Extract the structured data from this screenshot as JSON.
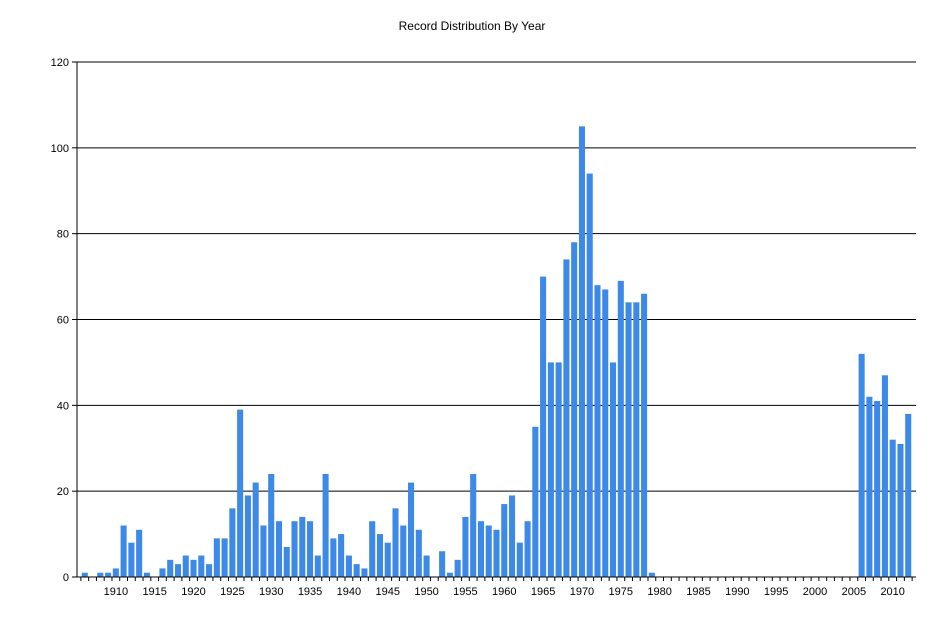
{
  "chart_data": {
    "type": "bar",
    "title": "Record Distribution By Year",
    "xlabel": "",
    "ylabel": "",
    "ylim": [
      0,
      120
    ],
    "yticks": [
      0,
      20,
      40,
      60,
      80,
      100,
      120
    ],
    "xlim": [
      1905,
      2013
    ],
    "xticks": [
      1910,
      1915,
      1920,
      1925,
      1930,
      1935,
      1940,
      1945,
      1950,
      1955,
      1960,
      1965,
      1970,
      1975,
      1980,
      1985,
      1990,
      1995,
      2000,
      2005,
      2010
    ],
    "grid": "horizontal",
    "legend": "none",
    "bar_color": "#3d89e8",
    "x": [
      1906,
      1908,
      1909,
      1910,
      1911,
      1912,
      1913,
      1914,
      1916,
      1917,
      1918,
      1919,
      1920,
      1921,
      1922,
      1923,
      1924,
      1925,
      1926,
      1927,
      1928,
      1929,
      1930,
      1931,
      1932,
      1933,
      1934,
      1935,
      1936,
      1937,
      1938,
      1939,
      1940,
      1941,
      1942,
      1943,
      1944,
      1945,
      1946,
      1947,
      1948,
      1949,
      1950,
      1952,
      1953,
      1954,
      1955,
      1956,
      1957,
      1958,
      1959,
      1960,
      1961,
      1962,
      1963,
      1964,
      1965,
      1966,
      1967,
      1968,
      1969,
      1970,
      1971,
      1972,
      1973,
      1974,
      1975,
      1976,
      1977,
      1978,
      1979,
      2006,
      2007,
      2008,
      2009,
      2010,
      2011,
      2012
    ],
    "values": [
      1,
      1,
      1,
      2,
      12,
      8,
      11,
      1,
      2,
      4,
      3,
      5,
      4,
      5,
      3,
      9,
      9,
      16,
      39,
      19,
      22,
      12,
      24,
      13,
      7,
      13,
      14,
      13,
      5,
      24,
      9,
      10,
      5,
      3,
      2,
      13,
      10,
      8,
      16,
      12,
      22,
      11,
      5,
      6,
      1,
      4,
      14,
      24,
      13,
      12,
      11,
      17,
      19,
      8,
      13,
      35,
      70,
      50,
      50,
      74,
      78,
      105,
      94,
      68,
      67,
      50,
      69,
      64,
      64,
      66,
      1,
      52,
      42,
      41,
      47,
      32,
      31,
      38
    ]
  }
}
